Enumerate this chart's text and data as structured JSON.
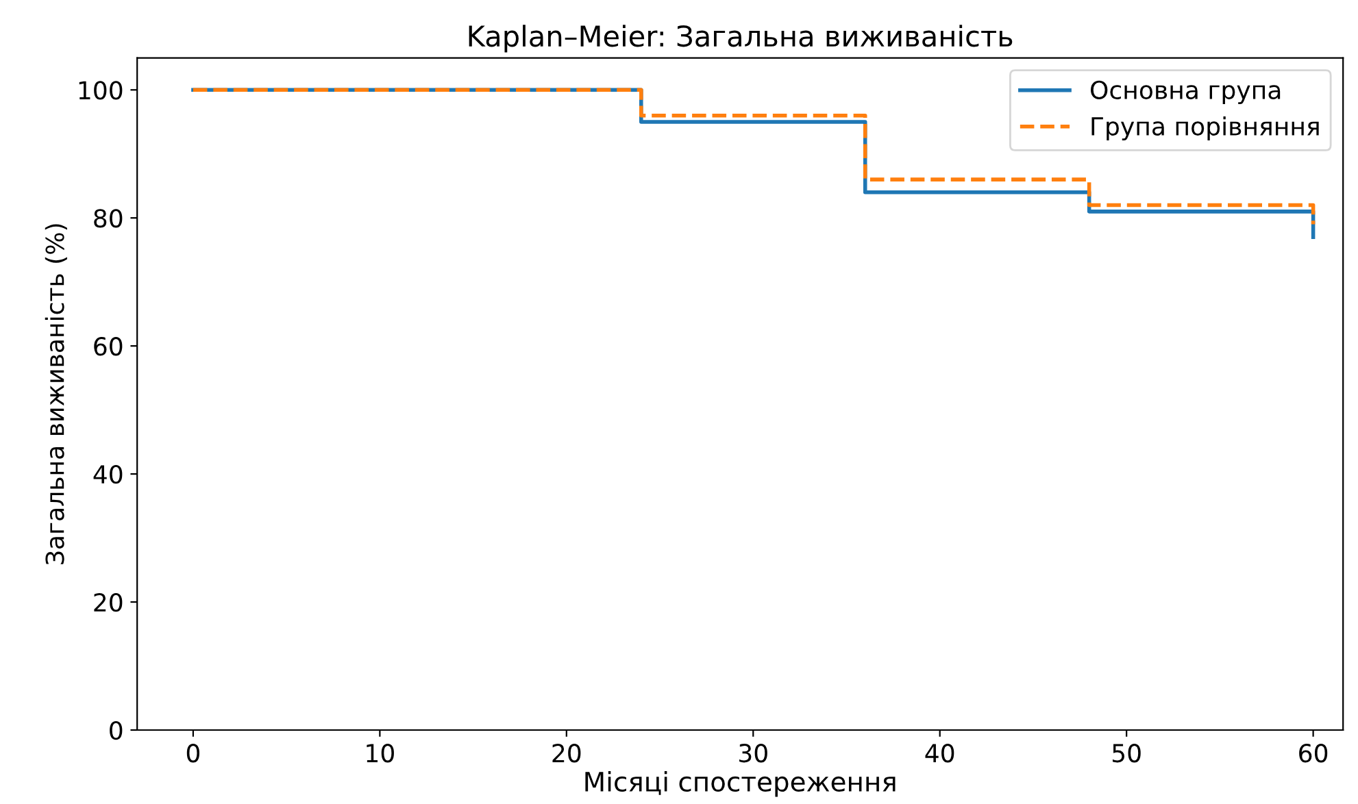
{
  "chart_data": {
    "type": "step",
    "title": "Kaplan–Meier: Загальна виживаність",
    "xlabel": "Місяці спостереження",
    "ylabel": "Загальна виживаність (%)",
    "x": [
      0,
      24,
      36,
      48,
      60
    ],
    "series": [
      {
        "name": "Основна група",
        "color": "#1f77b4",
        "line_style": "solid",
        "values": [
          100,
          95,
          84,
          81,
          77
        ]
      },
      {
        "name": "Група порівняння",
        "color": "#ff7f0e",
        "line_style": "dashed",
        "values": [
          100,
          96,
          86,
          82,
          79
        ]
      }
    ],
    "xlim": [
      -3,
      61.6
    ],
    "xticks": [
      0,
      10,
      20,
      30,
      40,
      50,
      60
    ],
    "ylim": [
      0,
      105
    ],
    "yticks": [
      0,
      20,
      40,
      60,
      80,
      100
    ],
    "grid": false,
    "legend": "top right",
    "marker": "none"
  }
}
